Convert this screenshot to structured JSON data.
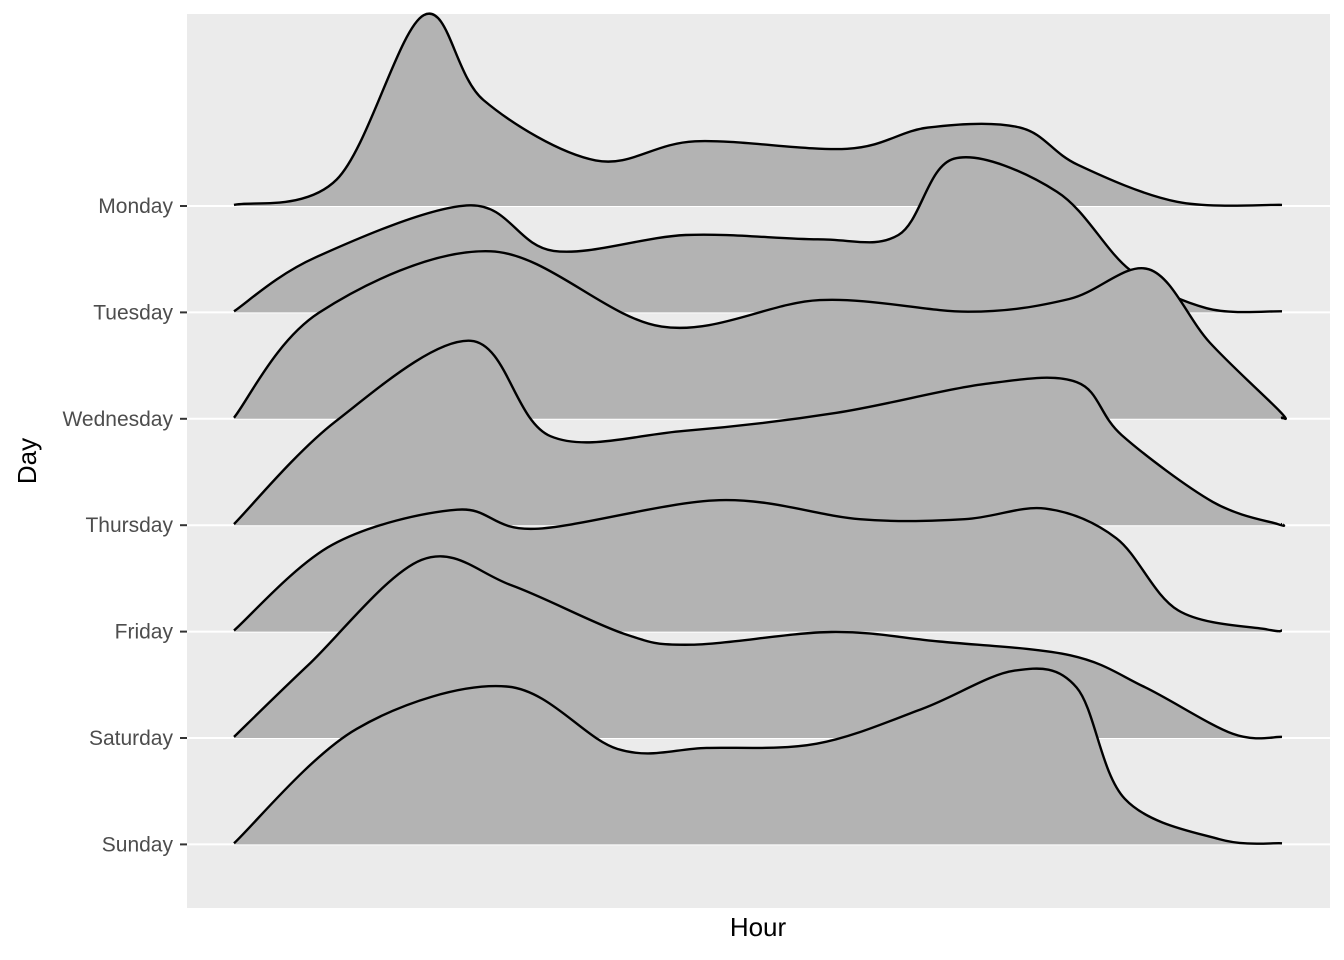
{
  "chart_data": {
    "type": "ridgeline",
    "title": "",
    "xlabel": "Hour",
    "ylabel": "Day",
    "x_tick_labels": [],
    "xlim": [
      0,
      1
    ],
    "grid": true,
    "legend": "none",
    "colors": {
      "panel": "#ebebeb",
      "grid": "#ffffff",
      "fill": "#b3b3b3",
      "line": "#000000",
      "tick": "#333333"
    },
    "categories": [
      "Monday",
      "Tuesday",
      "Wednesday",
      "Thursday",
      "Friday",
      "Saturday",
      "Sunday"
    ],
    "series": [
      {
        "name": "Monday",
        "x": [
          0.0,
          0.098,
          0.181,
          0.238,
          0.345,
          0.44,
          0.585,
          0.662,
          0.75,
          0.805,
          0.9,
          1.0
        ],
        "density": [
          0.01,
          0.25,
          1.8,
          1.0,
          0.43,
          0.61,
          0.54,
          0.74,
          0.74,
          0.39,
          0.04,
          0.01
        ]
      },
      {
        "name": "Tuesday",
        "x": [
          0.0,
          0.078,
          0.225,
          0.305,
          0.431,
          0.557,
          0.634,
          0.687,
          0.785,
          0.855,
          0.928,
          1.0
        ],
        "density": [
          0.01,
          0.52,
          1.01,
          0.58,
          0.73,
          0.69,
          0.73,
          1.45,
          1.14,
          0.4,
          0.04,
          0.01
        ]
      },
      {
        "name": "Wednesday",
        "x": [
          0.0,
          0.081,
          0.245,
          0.408,
          0.559,
          0.701,
          0.797,
          0.873,
          0.931,
          0.998,
          1.0,
          1.0
        ],
        "density": [
          0.01,
          1.0,
          1.58,
          0.87,
          1.12,
          1.01,
          1.13,
          1.41,
          0.72,
          0.07,
          0.01,
          0.01
        ]
      },
      {
        "name": "Thursday",
        "x": [
          0.0,
          0.097,
          0.226,
          0.302,
          0.429,
          0.575,
          0.715,
          0.804,
          0.847,
          0.934,
          0.996,
          1.0
        ],
        "density": [
          0.01,
          0.98,
          1.74,
          0.84,
          0.89,
          1.06,
          1.33,
          1.35,
          0.85,
          0.22,
          0.01,
          0.01
        ]
      },
      {
        "name": "Friday",
        "x": [
          0.0,
          0.094,
          0.213,
          0.287,
          0.463,
          0.597,
          0.697,
          0.774,
          0.842,
          0.901,
          0.986,
          1.0
        ],
        "density": [
          0.01,
          0.82,
          1.15,
          0.97,
          1.24,
          1.06,
          1.06,
          1.16,
          0.88,
          0.2,
          0.02,
          0.01
        ]
      },
      {
        "name": "Saturday",
        "x": [
          0.0,
          0.071,
          0.179,
          0.265,
          0.373,
          0.437,
          0.57,
          0.673,
          0.798,
          0.869,
          0.953,
          1.0
        ],
        "density": [
          0.01,
          0.69,
          1.68,
          1.44,
          0.98,
          0.88,
          1.0,
          0.91,
          0.78,
          0.48,
          0.04,
          0.01
        ]
      },
      {
        "name": "Sunday",
        "x": [
          0.0,
          0.117,
          0.26,
          0.366,
          0.451,
          0.556,
          0.657,
          0.745,
          0.804,
          0.85,
          0.94,
          1.0
        ],
        "density": [
          0.01,
          1.09,
          1.49,
          0.9,
          0.91,
          0.95,
          1.28,
          1.64,
          1.48,
          0.43,
          0.05,
          0.01
        ]
      }
    ]
  }
}
